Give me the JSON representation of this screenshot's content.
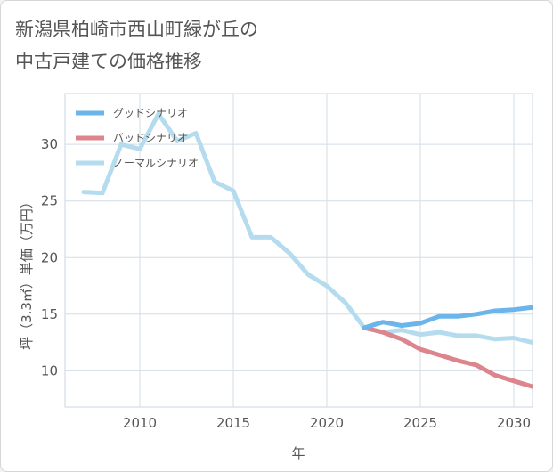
{
  "title": "新潟県柏崎市西山町緑が丘の\n中古戸建ての価格推移",
  "chart_data": {
    "type": "line",
    "title": "新潟県柏崎市西山町緑が丘の中古戸建ての価格推移",
    "xlabel": "年",
    "ylabel": "坪（3.3㎡）単価（万円）",
    "xlim": [
      2006,
      2031
    ],
    "ylim": [
      6.8,
      34.5
    ],
    "x_ticks": [
      2010,
      2015,
      2020,
      2025,
      2030
    ],
    "y_ticks": [
      10,
      15,
      20,
      25,
      30
    ],
    "grid": true,
    "legend_position": "top-left",
    "series": [
      {
        "name": "グッドシナリオ",
        "color": "#6bb5ea",
        "x": [
          2022,
          2023,
          2024,
          2025,
          2026,
          2027,
          2028,
          2029,
          2030,
          2031
        ],
        "y": [
          13.8,
          14.3,
          14.0,
          14.2,
          14.8,
          14.8,
          15.0,
          15.3,
          15.4,
          15.6
        ]
      },
      {
        "name": "バッドシナリオ",
        "color": "#dc858d",
        "x": [
          2022,
          2023,
          2024,
          2025,
          2026,
          2027,
          2028,
          2029,
          2030,
          2031
        ],
        "y": [
          13.8,
          13.4,
          12.8,
          11.9,
          11.4,
          10.9,
          10.5,
          9.6,
          9.1,
          8.6
        ]
      },
      {
        "name": "ノーマルシナリオ",
        "color": "#b5dcee",
        "x": [
          2007,
          2008,
          2009,
          2010,
          2011,
          2012,
          2013,
          2014,
          2015,
          2016,
          2017,
          2018,
          2019,
          2020,
          2021,
          2022,
          2023,
          2024,
          2025,
          2026,
          2027,
          2028,
          2029,
          2030,
          2031
        ],
        "y": [
          25.8,
          25.7,
          30.0,
          29.6,
          32.7,
          30.3,
          31.0,
          26.7,
          25.9,
          21.8,
          21.8,
          20.4,
          18.5,
          17.5,
          16.0,
          13.8,
          13.4,
          13.6,
          13.2,
          13.4,
          13.1,
          13.1,
          12.8,
          12.9,
          12.5
        ]
      }
    ]
  }
}
